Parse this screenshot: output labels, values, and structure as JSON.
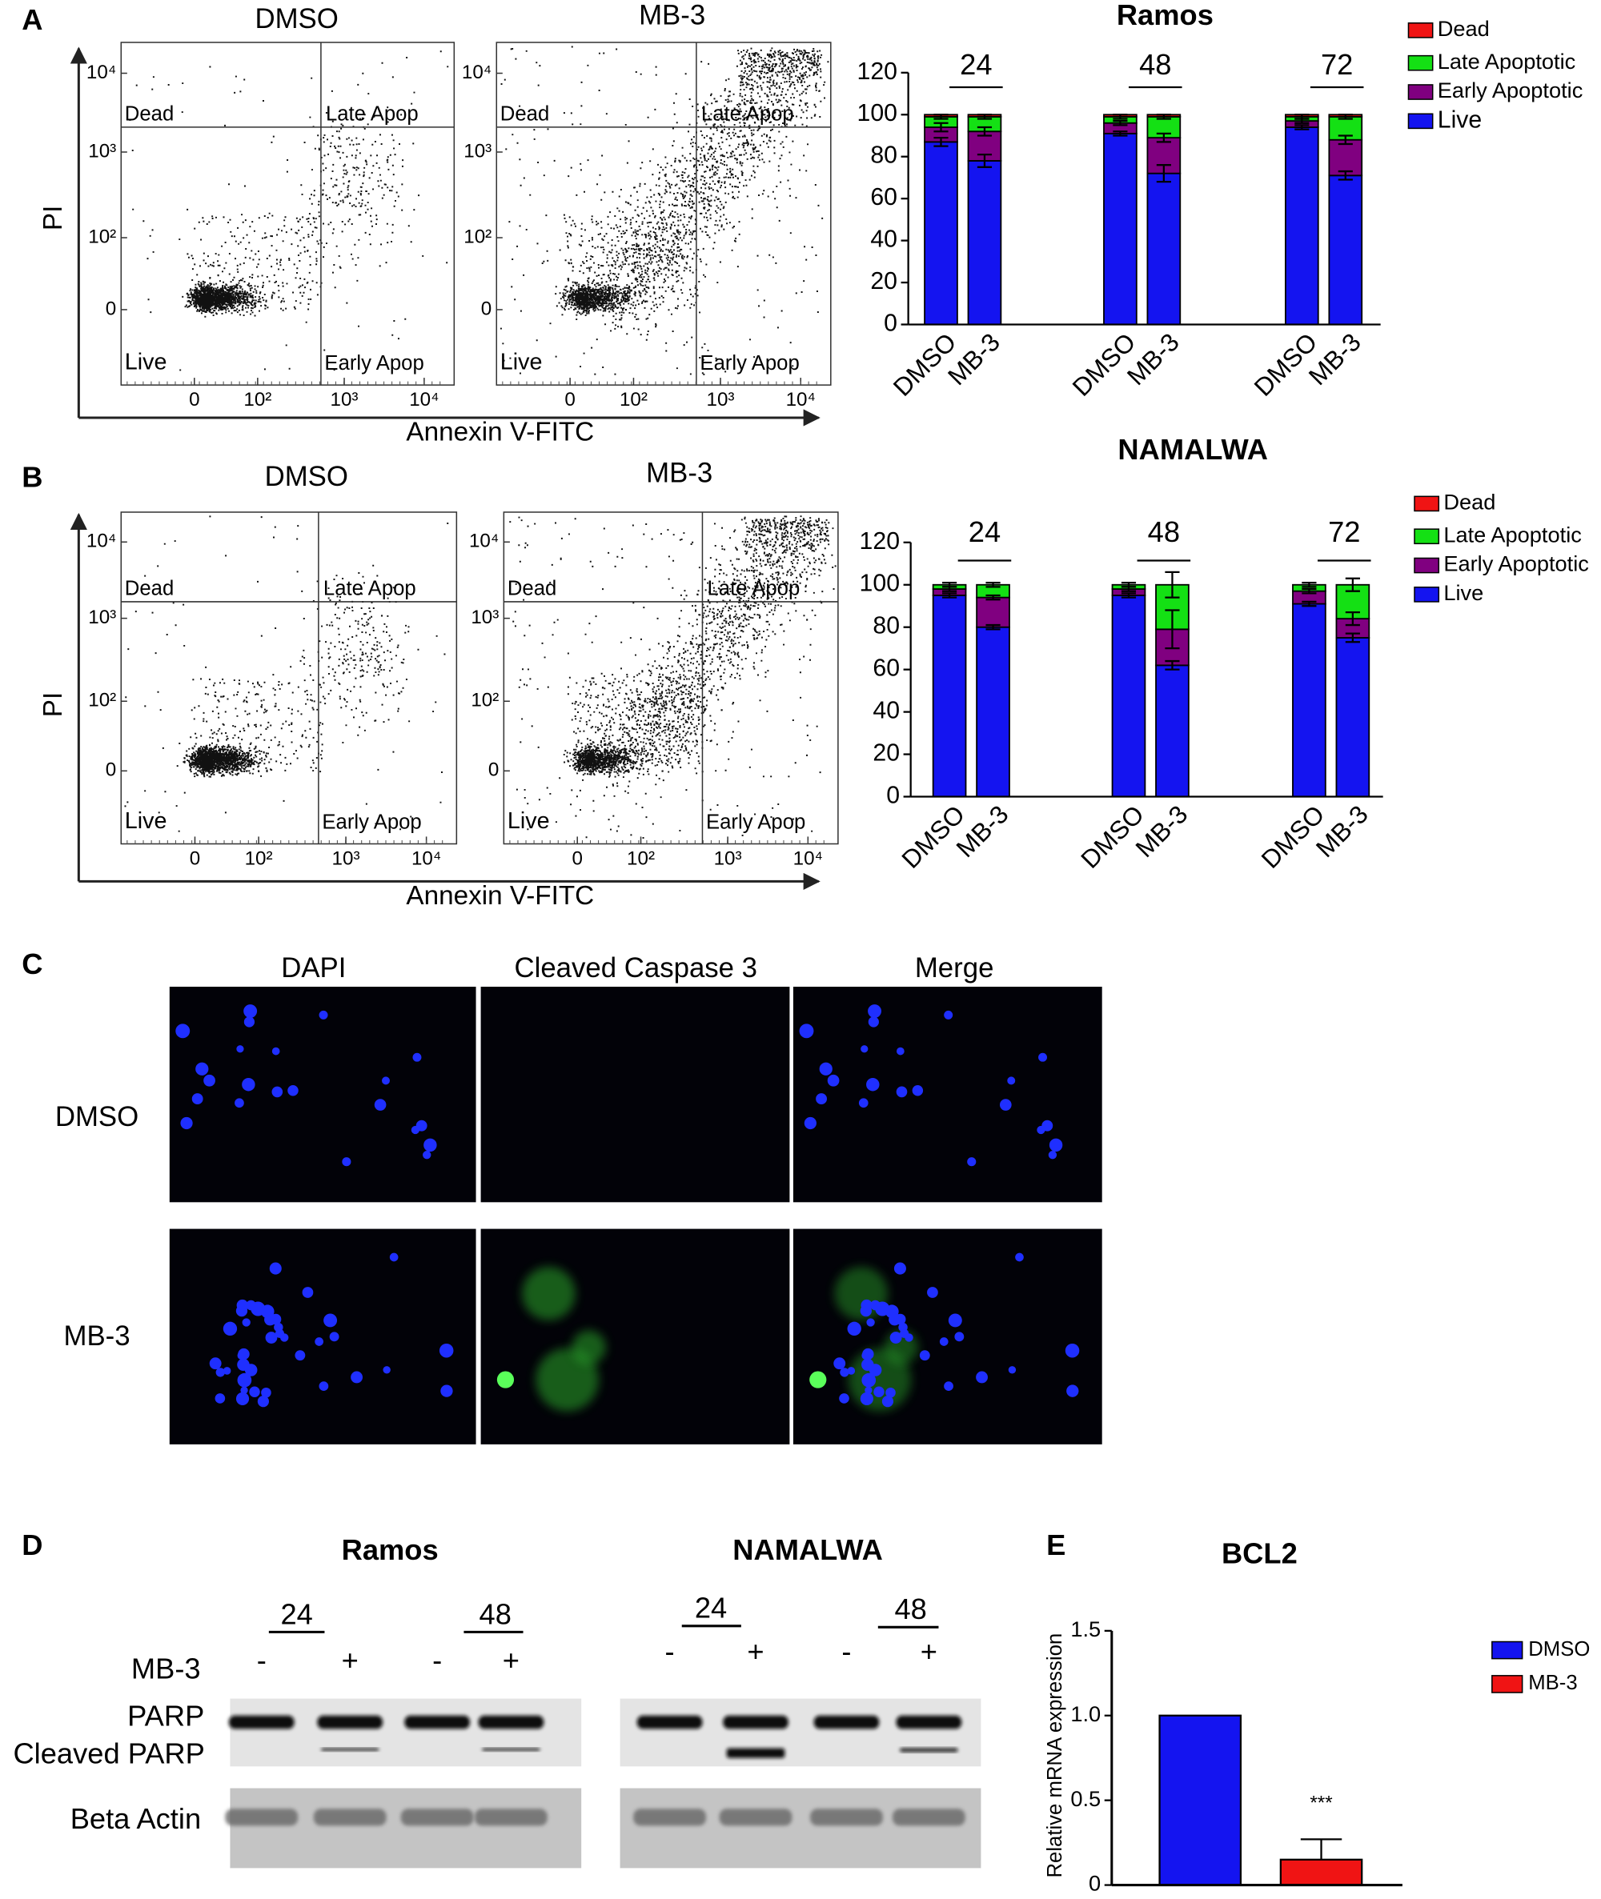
{
  "panel_labels": [
    "A",
    "B",
    "C",
    "D",
    "E"
  ],
  "flow": [
    {
      "titles": [
        "DMSO",
        "MB-3"
      ]
    },
    {
      "titles": [
        "DMSO",
        "MB-3"
      ]
    }
  ],
  "flow_axis": {
    "x_label": "Annexin V-FITC",
    "y_label": "PI",
    "ticks": [
      "0",
      "10²",
      "10³",
      "10⁴"
    ],
    "quadrants": [
      "Dead",
      "Late Apop",
      "Live",
      "Early Apop"
    ]
  },
  "chart_data": [
    {
      "type": "bar",
      "stacked": true,
      "title": "Ramos",
      "groups": [
        "24",
        "48",
        "72"
      ],
      "categories": [
        "DMSO",
        "MB-3",
        "DMSO",
        "MB-3",
        "DMSO",
        "MB-3"
      ],
      "ylim": [
        0,
        120
      ],
      "yticks": [
        0,
        20,
        40,
        60,
        80,
        100,
        120
      ],
      "series": [
        {
          "name": "Live",
          "color": "#1414f0",
          "values": [
            87,
            78,
            91,
            72,
            94,
            71
          ],
          "errors": [
            2,
            3,
            1,
            4,
            1,
            2
          ]
        },
        {
          "name": "Early Apoptotic",
          "color": "#800080",
          "values": [
            7,
            14,
            5,
            17,
            3,
            17
          ],
          "errors": [
            2,
            2,
            1,
            2,
            1,
            2
          ]
        },
        {
          "name": "Late Apoptotic",
          "color": "#14e014",
          "values": [
            5,
            7,
            3,
            10,
            2,
            11
          ],
          "errors": [
            1,
            1,
            1,
            1,
            1,
            1
          ]
        },
        {
          "name": "Dead",
          "color": "#f01414",
          "values": [
            1,
            1,
            1,
            1,
            1,
            1
          ]
        }
      ]
    },
    {
      "type": "bar",
      "stacked": true,
      "title": "NAMALWA",
      "groups": [
        "24",
        "48",
        "72"
      ],
      "categories": [
        "DMSO",
        "MB-3",
        "DMSO",
        "MB-3",
        "DMSO",
        "MB-3"
      ],
      "ylim": [
        0,
        120
      ],
      "yticks": [
        0,
        20,
        40,
        60,
        80,
        100,
        120
      ],
      "series": [
        {
          "name": "Live",
          "color": "#1414f0",
          "values": [
            95,
            80,
            95,
            62,
            91,
            75
          ],
          "errors": [
            1,
            1,
            1,
            2,
            1,
            2
          ]
        },
        {
          "name": "Early Apoptotic",
          "color": "#800080",
          "values": [
            3,
            14,
            3,
            17,
            6,
            9
          ],
          "errors": [
            1,
            1,
            1,
            9,
            1,
            3
          ]
        },
        {
          "name": "Late Apoptotic",
          "color": "#14e014",
          "values": [
            2,
            6,
            2,
            21,
            3,
            16
          ],
          "errors": [
            1,
            1,
            1,
            6,
            1,
            3
          ]
        },
        {
          "name": "Dead",
          "color": "#f01414",
          "values": [
            0,
            0,
            0,
            0,
            0,
            0
          ]
        }
      ]
    },
    {
      "type": "bar",
      "title": "BCL2",
      "y_label": "Relative mRNA expression",
      "categories": [
        "DMSO",
        "MB-3"
      ],
      "colors": [
        "#1414f0",
        "#f01414"
      ],
      "values": [
        1,
        0.15
      ],
      "errors": [
        null,
        0.12
      ],
      "annotations": [
        null,
        "***"
      ],
      "ylim": [
        0,
        1.5
      ],
      "yticks": [
        0,
        0.5,
        {
          "value": 1,
          "label": "1.0"
        },
        1.5
      ]
    }
  ],
  "microscopy": {
    "columns": [
      "DAPI",
      "Cleaved Caspase 3",
      "Merge"
    ],
    "rows": [
      "DMSO",
      "MB-3"
    ]
  },
  "western": {
    "blots": [
      {
        "title": "Ramos",
        "times": [
          "24",
          "48"
        ]
      },
      {
        "title": "NAMALWA",
        "times": [
          "24",
          "48"
        ]
      }
    ],
    "treatment_label": "MB-3",
    "signs": [
      "-",
      "+",
      "-",
      "+"
    ],
    "bands": [
      "PARP",
      "Cleaved PARP",
      "Beta Actin"
    ]
  }
}
